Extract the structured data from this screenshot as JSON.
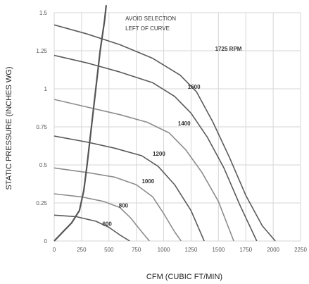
{
  "chart_data": {
    "type": "line",
    "title": "",
    "xlabel": "CFM (CUBIC FT/MIN)",
    "ylabel": "STATIC PRESSURE (INCHES WG)",
    "xlim": [
      0,
      2250
    ],
    "ylim": [
      0,
      1.5
    ],
    "x_ticks": [
      0,
      250,
      500,
      750,
      1000,
      1250,
      1500,
      1750,
      2000,
      2250
    ],
    "y_ticks": [
      0,
      0.25,
      0.5,
      0.75,
      1,
      1.25,
      1.5
    ],
    "x_tick_labels": [
      "0",
      "250",
      "500",
      "750",
      "1000",
      "1250",
      "1500",
      "1750",
      "2000",
      "2250"
    ],
    "y_tick_labels": [
      "0",
      "0.25",
      "0.5",
      "0.75",
      "1",
      "1.25",
      "1.5"
    ],
    "grid": true,
    "legend": "none",
    "colors": {
      "dark": "#5a5a5a",
      "light": "#8c8c8c",
      "selection": "#555555",
      "grid": "#d6d6d6"
    },
    "series": [
      {
        "name": "1725 RPM",
        "style": "dark",
        "points": [
          [
            0,
            1.42
          ],
          [
            300,
            1.36
          ],
          [
            600,
            1.29
          ],
          [
            900,
            1.2
          ],
          [
            1150,
            1.09
          ],
          [
            1300,
            0.98
          ],
          [
            1450,
            0.78
          ],
          [
            1600,
            0.55
          ],
          [
            1750,
            0.3
          ],
          [
            1900,
            0.1
          ],
          [
            2020,
            0
          ]
        ]
      },
      {
        "name": "1600",
        "style": "dark",
        "points": [
          [
            0,
            1.22
          ],
          [
            300,
            1.17
          ],
          [
            600,
            1.11
          ],
          [
            900,
            1.04
          ],
          [
            1100,
            0.95
          ],
          [
            1250,
            0.84
          ],
          [
            1400,
            0.68
          ],
          [
            1550,
            0.48
          ],
          [
            1700,
            0.23
          ],
          [
            1850,
            0
          ]
        ]
      },
      {
        "name": "1400",
        "style": "light",
        "points": [
          [
            0,
            0.93
          ],
          [
            300,
            0.88
          ],
          [
            600,
            0.83
          ],
          [
            850,
            0.78
          ],
          [
            1050,
            0.71
          ],
          [
            1200,
            0.6
          ],
          [
            1350,
            0.45
          ],
          [
            1500,
            0.26
          ],
          [
            1640,
            0
          ]
        ]
      },
      {
        "name": "1200",
        "style": "dark",
        "points": [
          [
            0,
            0.69
          ],
          [
            300,
            0.65
          ],
          [
            550,
            0.61
          ],
          [
            800,
            0.56
          ],
          [
            950,
            0.49
          ],
          [
            1100,
            0.37
          ],
          [
            1250,
            0.2
          ],
          [
            1370,
            0
          ]
        ]
      },
      {
        "name": "1000",
        "style": "light",
        "points": [
          [
            0,
            0.48
          ],
          [
            300,
            0.45
          ],
          [
            550,
            0.42
          ],
          [
            750,
            0.37
          ],
          [
            900,
            0.29
          ],
          [
            1000,
            0.18
          ],
          [
            1100,
            0.06
          ],
          [
            1160,
            0
          ]
        ]
      },
      {
        "name": "800",
        "style": "light",
        "points": [
          [
            0,
            0.31
          ],
          [
            250,
            0.29
          ],
          [
            450,
            0.26
          ],
          [
            600,
            0.22
          ],
          [
            700,
            0.15
          ],
          [
            800,
            0.06
          ],
          [
            870,
            0
          ]
        ]
      },
      {
        "name": "600",
        "style": "dark",
        "points": [
          [
            0,
            0.17
          ],
          [
            200,
            0.16
          ],
          [
            380,
            0.13
          ],
          [
            500,
            0.09
          ],
          [
            600,
            0.04
          ],
          [
            690,
            0
          ]
        ]
      }
    ],
    "curve_labels": [
      {
        "text": "1725 RPM",
        "x": 1470,
        "y": 1.25
      },
      {
        "text": "1600",
        "x": 1220,
        "y": 1.0
      },
      {
        "text": "1400",
        "x": 1130,
        "y": 0.76
      },
      {
        "text": "1200",
        "x": 900,
        "y": 0.56
      },
      {
        "text": "1000",
        "x": 800,
        "y": 0.38
      },
      {
        "text": "800",
        "x": 590,
        "y": 0.22
      },
      {
        "text": "600",
        "x": 440,
        "y": 0.1
      }
    ],
    "selection_curve": {
      "points": [
        [
          0,
          0
        ],
        [
          80,
          0.06
        ],
        [
          160,
          0.12
        ],
        [
          230,
          0.2
        ],
        [
          270,
          0.33
        ],
        [
          300,
          0.5
        ],
        [
          340,
          0.75
        ],
        [
          380,
          1.0
        ],
        [
          420,
          1.25
        ],
        [
          460,
          1.45
        ],
        [
          475,
          1.55
        ]
      ]
    },
    "annotation": {
      "lines": [
        "AVOID SELECTION",
        "LEFT OF CURVE"
      ],
      "x": 650,
      "y": 1.45
    }
  }
}
